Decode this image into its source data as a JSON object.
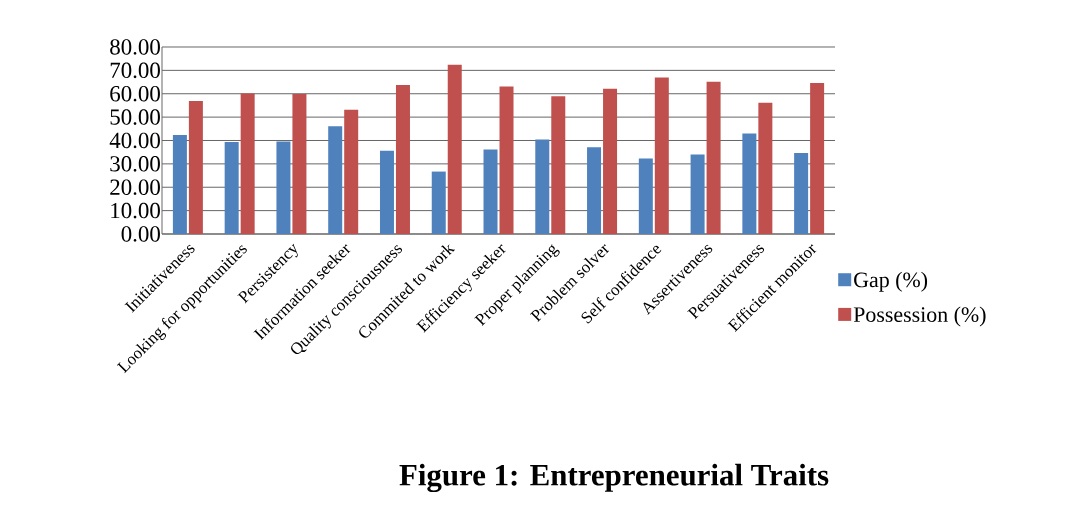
{
  "chart_data": {
    "type": "bar",
    "title": "Figure 1:     Entrepreneurial Traits",
    "categories": [
      "Initiativeness",
      "Looking for opportunities",
      "Persistency",
      "Information seeker",
      "Quality consciousness",
      "Commited to work",
      "Efficiency seeker",
      "Proper planning",
      "Problem solver",
      "Self confidence",
      "Assertiveness",
      "Persuativeness",
      "Efficient monitor"
    ],
    "series": [
      {
        "name": "Gap (%)",
        "color": "#4f81bd",
        "values": [
          42.3,
          39.4,
          39.6,
          46.1,
          35.6,
          26.7,
          36.1,
          40.4,
          37.1,
          32.3,
          34.0,
          43.0,
          34.6
        ]
      },
      {
        "name": "Possession (%)",
        "color": "#c0504d",
        "values": [
          56.9,
          60.1,
          59.9,
          53.1,
          63.7,
          72.4,
          63.1,
          58.9,
          62.1,
          66.9,
          65.1,
          56.1,
          64.6
        ]
      }
    ],
    "ylim": [
      0,
      80
    ],
    "yticks": [
      {
        "value": 0,
        "label": "0.00"
      },
      {
        "value": 10,
        "label": "10.00"
      },
      {
        "value": 20,
        "label": "20.00"
      },
      {
        "value": 30,
        "label": "30.00"
      },
      {
        "value": 40,
        "label": "40.00"
      },
      {
        "value": 50,
        "label": "50.00"
      },
      {
        "value": 60,
        "label": "60.00"
      },
      {
        "value": 70,
        "label": "70.00"
      },
      {
        "value": 80,
        "label": "80.00"
      }
    ],
    "grid": "y",
    "legend": "right"
  }
}
